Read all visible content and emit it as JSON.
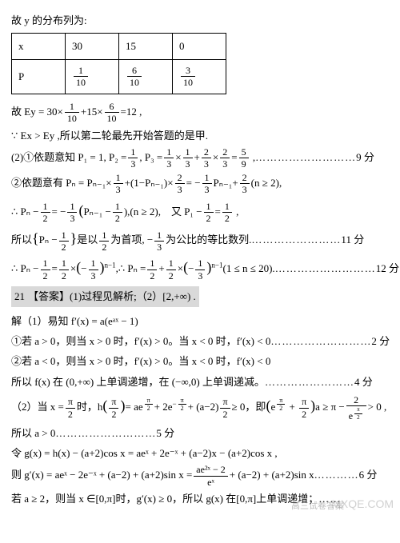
{
  "intro": "故 y 的分布列为:",
  "table": {
    "columns": [
      "x",
      "30",
      "15",
      "0"
    ],
    "p_label": "P",
    "p_values": [
      {
        "num": "1",
        "den": "10"
      },
      {
        "num": "6",
        "den": "10"
      },
      {
        "num": "3",
        "den": "10"
      }
    ]
  },
  "ey_line_prefix": "故 Ey = 30×",
  "ey_f1": {
    "num": "1",
    "den": "10"
  },
  "ey_mid": "+15×",
  "ey_f2": {
    "num": "6",
    "den": "10"
  },
  "ey_suffix": "=12 ,",
  "compare_line": "∵ Ex > Ey ,所以第二轮最先开始答题的是甲.",
  "q2_1_prefix": "(2)①依题意知 P₁ = 1, P₂ =",
  "q2_1_f1": {
    "num": "1",
    "den": "3"
  },
  "q2_1_m1": ", P₃ =",
  "q2_1_f2": {
    "num": "1",
    "den": "3"
  },
  "q2_1_m2": "×",
  "q2_1_f3": {
    "num": "1",
    "den": "3"
  },
  "q2_1_m3": "+",
  "q2_1_f4": {
    "num": "2",
    "den": "3"
  },
  "q2_1_m4": "×",
  "q2_1_f5": {
    "num": "2",
    "den": "3"
  },
  "q2_1_m5": "=",
  "q2_1_f6": {
    "num": "5",
    "den": "9"
  },
  "q2_1_suffix": " ,",
  "q2_1_pts": "9 分",
  "q2_2_prefix": "②依题意有 Pₙ = Pₙ₋₁×",
  "q2_2_f1": {
    "num": "1",
    "den": "3"
  },
  "q2_2_m1": "+(1−Pₙ₋₁)×",
  "q2_2_f2": {
    "num": "2",
    "den": "3"
  },
  "q2_2_m2": "= −",
  "q2_2_f3": {
    "num": "1",
    "den": "3"
  },
  "q2_2_m3": "Pₙ₋₁+",
  "q2_2_f4": {
    "num": "2",
    "den": "3"
  },
  "q2_2_suffix": "(n ≥ 2),",
  "q2_3_prefix": "∴ Pₙ −",
  "q2_3_f1": {
    "num": "1",
    "den": "2"
  },
  "q2_3_m1": "= −",
  "q2_3_f2": {
    "num": "1",
    "den": "3"
  },
  "q2_3_m2a": "(",
  "q2_3_m2b": "Pₙ₋₁ −",
  "q2_3_f3": {
    "num": "1",
    "den": "2"
  },
  "q2_3_m3": "),(n ≥ 2),　又 P₁ −",
  "q2_3_f4": {
    "num": "1",
    "den": "2"
  },
  "q2_3_m4": "=",
  "q2_3_f5": {
    "num": "1",
    "den": "2"
  },
  "q2_3_suffix": " ,",
  "q2_4_prefix": "所以",
  "q2_4_m1a": "{",
  "q2_4_m1b": "Pₙ −",
  "q2_4_f1": {
    "num": "1",
    "den": "2"
  },
  "q2_4_m1c": "}",
  "q2_4_m2": "是以",
  "q2_4_f2": {
    "num": "1",
    "den": "2"
  },
  "q2_4_m3": "为首项, −",
  "q2_4_f3": {
    "num": "1",
    "den": "3"
  },
  "q2_4_suffix": "为公比的等比数列.",
  "q2_4_pts": "11 分",
  "q2_5_prefix": "∴ Pₙ −",
  "q2_5_f1": {
    "num": "1",
    "den": "2"
  },
  "q2_5_m1": "=",
  "q2_5_f2": {
    "num": "1",
    "den": "2"
  },
  "q2_5_m2": "×",
  "q2_5_m2a": "(",
  "q2_5_m2b": "−",
  "q2_5_f3": {
    "num": "1",
    "den": "3"
  },
  "q2_5_m2c": ")",
  "q2_5_exp1": "n−1",
  "q2_5_m3": ",∴ Pₙ =",
  "q2_5_f4": {
    "num": "1",
    "den": "2"
  },
  "q2_5_m4": "+",
  "q2_5_f5": {
    "num": "1",
    "den": "2"
  },
  "q2_5_m5": "×",
  "q2_5_m5a": "(",
  "q2_5_m5b": "−",
  "q2_5_f6": {
    "num": "1",
    "den": "3"
  },
  "q2_5_m5c": ")",
  "q2_5_exp2": "n−1",
  "q2_5_suffix": "(1 ≤ n ≤ 20).",
  "q2_5_pts": "12 分",
  "ans21_label": "21",
  "ans21_text": "【答案】(1)过程见解析;（2）[2,+∞) .",
  "sol_head": "解（1）易知 f′(x) = a(eᵃˣ − 1)",
  "sol_l1": "①若 a > 0，则当 x > 0 时，f′(x) > 0。当 x < 0 时，f′(x) < 0",
  "sol_l1_pts": "2 分",
  "sol_l2": "②若 a < 0，则当 x > 0 时，f′(x) > 0。当 x < 0 时，f′(x) < 0",
  "sol_l3": "所以 f(x) 在 (0,+∞) 上单调递增，在 (−∞,0) 上单调递减。",
  "sol_l3_pts": "4 分",
  "p2_prefix": "（2）当 x =",
  "p2_f1": {
    "num": "π",
    "den": "2"
  },
  "p2_m1": "时，h",
  "p2_m1a": "(",
  "p2_f2": {
    "num": "π",
    "den": "2"
  },
  "p2_m1b": ")",
  "p2_m2": "= ae",
  "p2_m3": "+ 2e",
  "p2_m4": "+ (a−2)",
  "p2_f3": {
    "num": "π",
    "den": "2"
  },
  "p2_m5": "≥ 0，即",
  "p2_m5a": "(",
  "p2_m5b": "e",
  "p2_m5c": " + ",
  "p2_f4": {
    "num": "π",
    "den": "2"
  },
  "p2_m5d": ")",
  "p2_m6": "a ≥ π −",
  "p2_f5": {
    "num": "2",
    "den": "e"
  },
  "p2_suffix": "> 0 ,",
  "p2_expnum": "π",
  "p2_expden": "2",
  "p2_expneg": "−",
  "p2_l4": "所以 a > 0",
  "p2_l4_pts": "5 分",
  "g_def": "令 g(x) = h(x) − (a+2)cos x = aeˣ + 2e⁻ˣ + (a−2)x − (a+2)cos x ,",
  "gp_line_prefix": "则 g′(x) = aeˣ − 2e⁻ˣ + (a−2) + (a+2)sin x =",
  "gp_frac": {
    "num": "ae²ˣ − 2",
    "den": "eˣ"
  },
  "gp_suffix": "+ (a−2) + (a+2)sin x",
  "gp_pts": "6 分",
  "last_line": "若 a ≥ 2，则当 x ∈[0,π]时，g′(x) ≥ 0，所以 g(x) 在[0,π]上单调递增；",
  "last_dots": "……",
  "wm": "MXQE.COM",
  "wm2": "高三试卷答案"
}
